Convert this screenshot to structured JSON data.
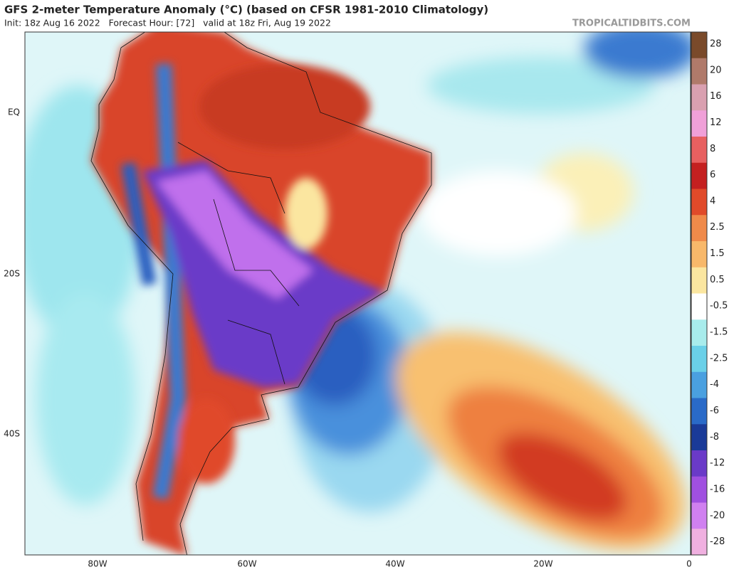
{
  "header": {
    "title": "GFS 2-meter Temperature Anomaly (°C) (based on CFSR 1981-2010 Climatology)",
    "subtitle": "Init: 18z Aug 16 2022   Forecast Hour: [72]   valid at 18z Fri, Aug 19 2022",
    "credit": "TROPICALTIDBITS.COM"
  },
  "map": {
    "lat_labels": [
      "EQ",
      "20S",
      "40S"
    ],
    "lon_labels": [
      "80W",
      "60W",
      "40W",
      "20W",
      "0"
    ]
  },
  "colorbar": {
    "labels": [
      28,
      20,
      16,
      12,
      8,
      6,
      4,
      2.5,
      1.5,
      0.5,
      -0.5,
      -1.5,
      -2.5,
      -4,
      -6,
      -8,
      -12,
      -16,
      -20,
      -28
    ],
    "colors": [
      "#7a4a2a",
      "#b07a6a",
      "#d9a0b0",
      "#f0a0d8",
      "#e76060",
      "#c42020",
      "#e04a2a",
      "#f08a4a",
      "#f8b86a",
      "#fbe6a0",
      "#ffffff",
      "#a8ecec",
      "#6ad0e8",
      "#4aa0e0",
      "#2a6ac8",
      "#1a3a98",
      "#6a3ac8",
      "#a050e0",
      "#d080f0",
      "#f0b0e0"
    ]
  }
}
